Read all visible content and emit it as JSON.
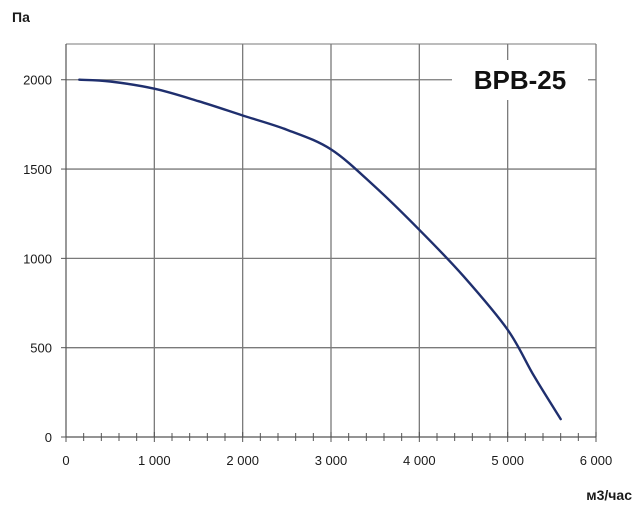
{
  "chart_data": {
    "type": "line",
    "title": "BPB-25",
    "ylabel": "Па",
    "xlabel": "м3/час",
    "xlim": [
      0,
      6000
    ],
    "ylim": [
      0,
      2200
    ],
    "xticks": [
      0,
      1000,
      2000,
      3000,
      4000,
      5000,
      6000
    ],
    "xtick_labels": [
      "0",
      "1 000",
      "2 000",
      "3 000",
      "4 000",
      "5 000",
      "6 000"
    ],
    "yticks": [
      0,
      500,
      1000,
      1500,
      2000
    ],
    "ytick_labels": [
      "0",
      "500",
      "1000",
      "1500",
      "2000"
    ],
    "grid": true,
    "colors": {
      "line": "#1f2f6e",
      "grid": "#7a7a7a",
      "axis": "#555555"
    },
    "series": [
      {
        "x": [
          150,
          500,
          1000,
          1500,
          2000,
          2500,
          3000,
          3500,
          4000,
          4500,
          5000,
          5300,
          5600
        ],
        "y": [
          2000,
          1990,
          1950,
          1880,
          1800,
          1720,
          1610,
          1400,
          1160,
          900,
          600,
          340,
          100
        ]
      }
    ]
  }
}
